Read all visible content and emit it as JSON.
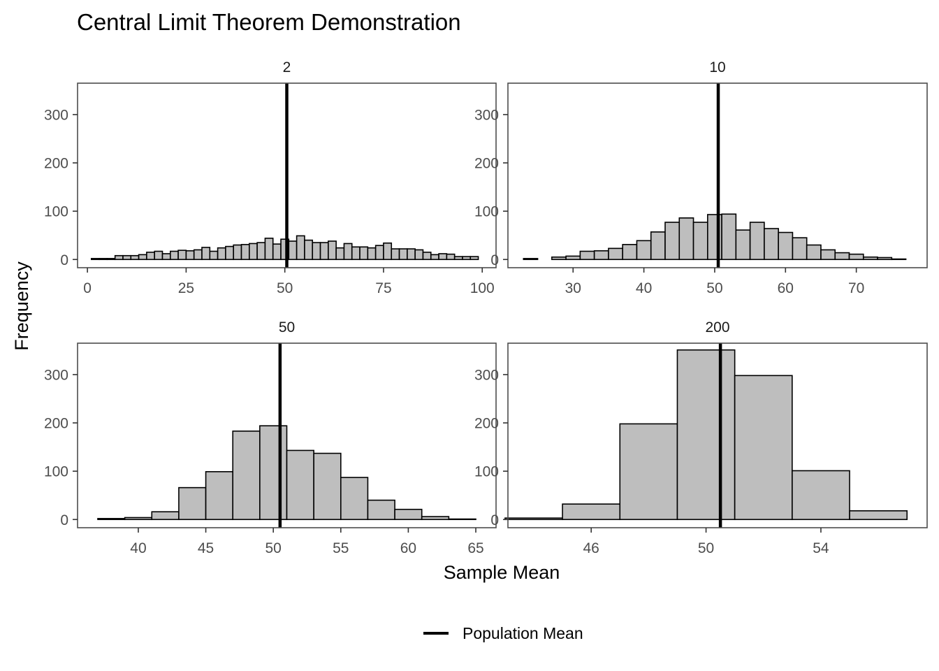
{
  "chart_data": {
    "type": "bar",
    "title": "Central Limit Theorem Demonstration",
    "xlabel": "Sample Mean",
    "ylabel": "Frequency",
    "grid": false,
    "legend": {
      "position": "bottom",
      "entries": [
        {
          "label": "Population Mean",
          "color": "#000000"
        }
      ]
    },
    "colors": {
      "bar_fill": "#bebebe",
      "bar_stroke": "#000000",
      "mean_line": "#000000",
      "panel_border": "#4d4d4d"
    },
    "population_mean": 50.5,
    "panels": [
      {
        "label": "2",
        "xlim": [
          -2.5,
          103.5
        ],
        "ylim": [
          -17,
          365
        ],
        "xticks": [
          0,
          25,
          50,
          75,
          100
        ],
        "yticks": [
          0,
          100,
          200,
          300
        ],
        "bins": {
          "start": 1.0,
          "width": 2.0
        },
        "counts": [
          2,
          2,
          2,
          8,
          8,
          8,
          10,
          15,
          17,
          12,
          17,
          19,
          18,
          20,
          25,
          17,
          24,
          27,
          30,
          31,
          33,
          35,
          44,
          32,
          42,
          38,
          49,
          40,
          35,
          35,
          38,
          24,
          33,
          26,
          26,
          24,
          29,
          34,
          22,
          22,
          22,
          20,
          15,
          10,
          12,
          11,
          6,
          6,
          6,
          0,
          0
        ]
      },
      {
        "label": "10",
        "xlim": [
          20.8,
          80.0
        ],
        "ylim": [
          -17,
          365
        ],
        "xticks": [
          30,
          40,
          50,
          60,
          70
        ],
        "yticks": [
          0,
          100,
          200,
          300
        ],
        "bins": {
          "start": 23.0,
          "width": 2.0
        },
        "counts": [
          2,
          0,
          5,
          7,
          17,
          18,
          23,
          31,
          39,
          57,
          77,
          86,
          77,
          93,
          94,
          61,
          77,
          64,
          56,
          45,
          30,
          20,
          14,
          11,
          5,
          4,
          1
        ]
      },
      {
        "label": "50",
        "xlim": [
          35.5,
          66.5
        ],
        "ylim": [
          -17,
          365
        ],
        "xticks": [
          40,
          45,
          50,
          55,
          60,
          65
        ],
        "yticks": [
          0,
          100,
          200,
          300
        ],
        "bins": {
          "start": 37.0,
          "width": 2.0
        },
        "counts": [
          2,
          4,
          16,
          66,
          99,
          183,
          194,
          143,
          137,
          87,
          40,
          21,
          6,
          1
        ]
      },
      {
        "label": "200",
        "xlim": [
          43.1,
          57.7
        ],
        "ylim": [
          -17,
          365
        ],
        "xticks": [
          46,
          50,
          54
        ],
        "yticks": [
          0,
          100,
          200,
          300
        ],
        "bins": {
          "start": 43.0,
          "width": 2.0
        },
        "counts": [
          3,
          32,
          198,
          351,
          298,
          101,
          18
        ]
      }
    ]
  }
}
